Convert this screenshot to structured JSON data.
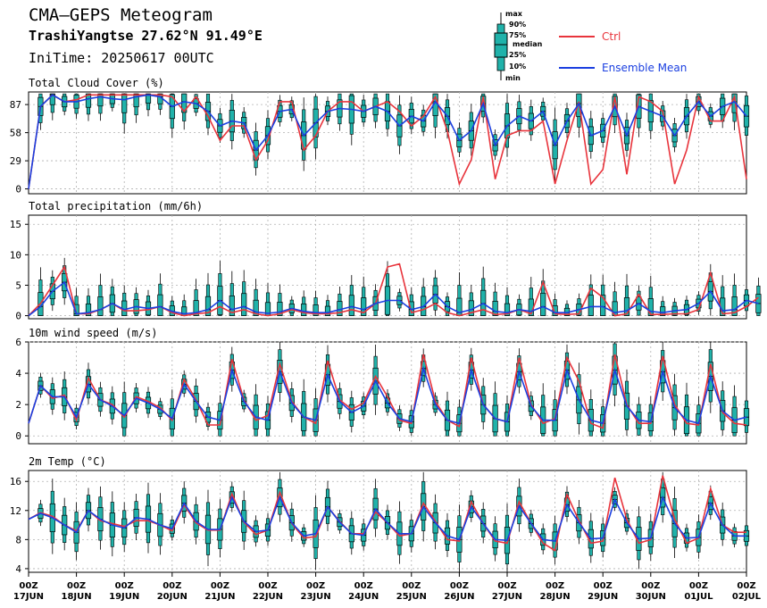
{
  "header": {
    "title": "CMA—GEPS Meteogram",
    "location": "TrashiYangtse 27.62°N 91.49°E",
    "init_time": "IniTime: 20250617 00UTC"
  },
  "legend": {
    "box_labels": [
      "max",
      "90%",
      "75%",
      "median",
      "25%",
      "10%",
      "min"
    ],
    "ctrl_label": "Ctrl",
    "mean_label": "Ensemble Mean"
  },
  "colors": {
    "ctrl": "#e8343c",
    "mean": "#1a3fe0",
    "box": "#20b2aa",
    "grid": "#b0b0b0"
  },
  "x_labels": [
    {
      "top": "00Z",
      "bottom": "17JUN"
    },
    {
      "top": "00Z",
      "bottom": "18JUN"
    },
    {
      "top": "00Z",
      "bottom": "19JUN"
    },
    {
      "top": "00Z",
      "bottom": "20JUN"
    },
    {
      "top": "00Z",
      "bottom": "21JUN"
    },
    {
      "top": "00Z",
      "bottom": "22JUN"
    },
    {
      "top": "00Z",
      "bottom": "23JUN"
    },
    {
      "top": "00Z",
      "bottom": "24JUN"
    },
    {
      "top": "00Z",
      "bottom": "25JUN"
    },
    {
      "top": "00Z",
      "bottom": "26JUN"
    },
    {
      "top": "00Z",
      "bottom": "27JUN"
    },
    {
      "top": "00Z",
      "bottom": "28JUN"
    },
    {
      "top": "00Z",
      "bottom": "29JUN"
    },
    {
      "top": "00Z",
      "bottom": "30JUN"
    },
    {
      "top": "00Z",
      "bottom": "01JUL"
    },
    {
      "top": "00Z",
      "bottom": "02JUL"
    }
  ],
  "chart_data": [
    {
      "type": "line",
      "title": "Total Cloud Cover (%)",
      "ylim": [
        -5,
        100
      ],
      "yticks": [
        "0",
        "29",
        "58",
        "87"
      ],
      "ytick_values": [
        0,
        29,
        58,
        87
      ],
      "grid": true,
      "series": [
        {
          "name": "Ctrl",
          "values": [
            0,
            85,
            97,
            90,
            92,
            97,
            97,
            97,
            97,
            97,
            97,
            97,
            95,
            80,
            95,
            75,
            50,
            65,
            65,
            30,
            50,
            90,
            90,
            40,
            55,
            80,
            90,
            90,
            80,
            85,
            90,
            80,
            65,
            75,
            95,
            60,
            5,
            30,
            95,
            10,
            55,
            60,
            60,
            70,
            5,
            50,
            90,
            5,
            20,
            95,
            15,
            95,
            90,
            80,
            5,
            40,
            95,
            70,
            70,
            95,
            10
          ]
        },
        {
          "name": "Ensemble Mean",
          "values": [
            0,
            85,
            97,
            90,
            90,
            93,
            95,
            93,
            92,
            95,
            97,
            95,
            85,
            90,
            88,
            80,
            65,
            70,
            68,
            40,
            55,
            80,
            82,
            55,
            68,
            80,
            83,
            82,
            80,
            85,
            80,
            65,
            75,
            70,
            90,
            75,
            50,
            60,
            88,
            45,
            65,
            75,
            70,
            80,
            45,
            70,
            88,
            55,
            60,
            85,
            55,
            85,
            80,
            75,
            55,
            75,
            90,
            75,
            85,
            90,
            75
          ]
        }
      ]
    },
    {
      "type": "line",
      "title": "Total precipitation (mm/6h)",
      "ylim": [
        -0.5,
        16.5
      ],
      "yticks": [
        "0",
        "5",
        "10",
        "15"
      ],
      "ytick_values": [
        0,
        5,
        10,
        15
      ],
      "grid": true,
      "series": [
        {
          "name": "Ctrl",
          "values": [
            0,
            2,
            5,
            8,
            0.3,
            0.3,
            1,
            2,
            0.8,
            0.8,
            1,
            1.5,
            0.5,
            0,
            0.3,
            0.5,
            1.5,
            0.5,
            1,
            0.3,
            0,
            0.3,
            1,
            0.5,
            0.3,
            0.3,
            0.5,
            1,
            0.5,
            2,
            8,
            8.5,
            0.5,
            1,
            2,
            0.5,
            0,
            0.5,
            1,
            0.2,
            0.3,
            1,
            0.3,
            5.5,
            0.3,
            0.2,
            0.3,
            4.5,
            3,
            0,
            0.3,
            3.5,
            0.2,
            0.2,
            0.3,
            0.3,
            1,
            7,
            0.3,
            0.5,
            1.5,
            3
          ]
        },
        {
          "name": "Ensemble Mean",
          "values": [
            0,
            1.5,
            4,
            5.5,
            0.3,
            0.5,
            1,
            2,
            1,
            1.5,
            1.2,
            1.5,
            0.7,
            0.3,
            0.5,
            1,
            2.5,
            1,
            1.5,
            0.6,
            0.4,
            0.6,
            1.2,
            0.7,
            0.5,
            0.5,
            1,
            1.5,
            1,
            2,
            2.5,
            2.5,
            1,
            1.5,
            3.5,
            1.5,
            0.5,
            1,
            2,
            0.7,
            0.5,
            1,
            0.7,
            1.5,
            0.5,
            0.5,
            1,
            1.5,
            1.5,
            0.5,
            0.8,
            2,
            0.7,
            0.5,
            0.8,
            1,
            2,
            4,
            0.8,
            1,
            2.5,
            2
          ]
        }
      ]
    },
    {
      "type": "line",
      "title": "10m wind speed (m/s)",
      "ylim": [
        -0.5,
        6
      ],
      "yticks": [
        "0",
        "2",
        "4",
        "6"
      ],
      "ytick_values": [
        0,
        2,
        4,
        6
      ],
      "grid": true,
      "series": [
        {
          "name": "Ctrl",
          "values": [
            0.8,
            3.2,
            2.4,
            2.6,
            1.0,
            3.7,
            2.3,
            2.0,
            1.2,
            2.5,
            2.2,
            1.8,
            1.0,
            3.6,
            2.3,
            0.7,
            0.7,
            4.9,
            2.3,
            1.0,
            1.3,
            4.6,
            2.2,
            1.2,
            0.8,
            4.8,
            2.3,
            1.7,
            2.1,
            3.8,
            2.5,
            1.0,
            0.8,
            5.2,
            2.2,
            1.0,
            0.6,
            5.0,
            2.0,
            1.1,
            0.9,
            5.0,
            2.0,
            0.8,
            1.1,
            5.0,
            3.5,
            0.8,
            0.5,
            5.2,
            2.0,
            0.8,
            0.8,
            5.1,
            2.0,
            0.8,
            0.7,
            4.6,
            1.5,
            0.8,
            0.7
          ]
        },
        {
          "name": "Ensemble Mean",
          "values": [
            0.8,
            3.2,
            2.5,
            2.5,
            1.2,
            3.3,
            2.3,
            1.9,
            1.3,
            2.4,
            2.1,
            1.7,
            1.1,
            3.3,
            2.2,
            1.2,
            1.0,
            4.2,
            2.2,
            1.2,
            1.0,
            4.1,
            2.1,
            1.2,
            1.0,
            3.9,
            2.2,
            1.5,
            1.9,
            3.5,
            2.1,
            1.1,
            0.9,
            4.3,
            2.0,
            1.0,
            0.8,
            4.2,
            2.0,
            1.1,
            0.9,
            4.1,
            1.9,
            1.0,
            1.0,
            4.2,
            2.3,
            1.0,
            0.8,
            4.2,
            1.9,
            1.0,
            0.9,
            4.1,
            1.8,
            1.0,
            0.8,
            3.8,
            1.6,
            1.0,
            1.2
          ]
        }
      ]
    },
    {
      "type": "line",
      "title": "2m Temp (°C)",
      "ylim": [
        3.5,
        17.5
      ],
      "yticks": [
        "4",
        "8",
        "12",
        "16"
      ],
      "ytick_values": [
        4,
        8,
        12,
        16
      ],
      "grid": true,
      "series": [
        {
          "name": "Ctrl",
          "values": [
            10.8,
            11.7,
            11.2,
            10.0,
            9.2,
            12.0,
            10.6,
            10.2,
            9.8,
            10.6,
            10.6,
            10.0,
            9.2,
            12.8,
            10.3,
            9.3,
            9.3,
            14.3,
            10.4,
            8.7,
            9.3,
            14.5,
            10.2,
            8.2,
            8.4,
            12.5,
            10.5,
            8.8,
            8.8,
            11.8,
            10.3,
            8.5,
            8.8,
            13.0,
            10.5,
            8.0,
            7.8,
            13.2,
            10.2,
            7.8,
            7.5,
            13.2,
            10.2,
            7.5,
            6.5,
            14.2,
            10.6,
            7.5,
            7.8,
            16.5,
            10.8,
            7.5,
            8.0,
            16.8,
            10.8,
            7.5,
            8.2,
            15.0,
            10.0,
            9.0,
            9.0
          ]
        },
        {
          "name": "Ensemble Mean",
          "values": [
            10.8,
            11.6,
            11.0,
            10.0,
            9.0,
            12.0,
            10.8,
            10.0,
            9.6,
            11.0,
            10.8,
            10.0,
            9.5,
            13.0,
            10.5,
            9.4,
            9.4,
            13.8,
            10.5,
            9.1,
            9.3,
            13.8,
            10.3,
            8.5,
            8.8,
            12.5,
            10.4,
            8.8,
            8.6,
            12.2,
            10.3,
            8.8,
            8.8,
            12.5,
            10.3,
            8.5,
            8.0,
            12.5,
            10.2,
            8.0,
            7.9,
            12.6,
            10.2,
            8.0,
            7.8,
            12.8,
            10.3,
            8.1,
            8.2,
            13.5,
            10.3,
            8.1,
            8.2,
            13.8,
            10.2,
            8.2,
            8.3,
            13.0,
            10.0,
            8.5,
            8.5
          ]
        }
      ]
    }
  ]
}
